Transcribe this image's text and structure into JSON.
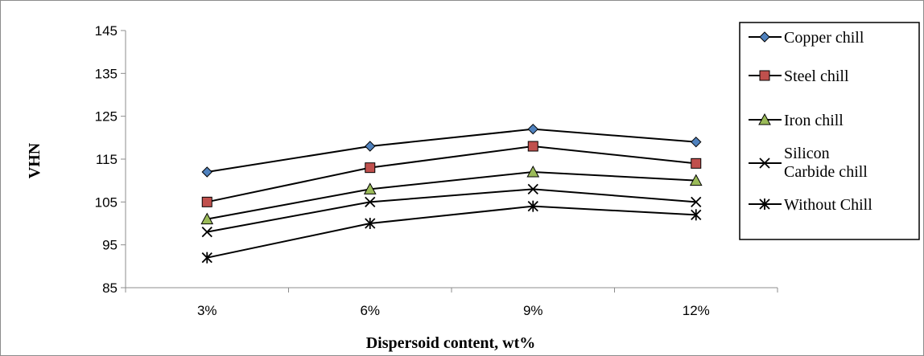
{
  "chart_data": {
    "type": "line",
    "title": "",
    "xlabel": "Dispersoid content, wt%",
    "ylabel": "VHN",
    "categories": [
      "3%",
      "6%",
      "9%",
      "12%"
    ],
    "ylim": [
      85,
      145
    ],
    "yticks": [
      85,
      95,
      105,
      115,
      125,
      135,
      145
    ],
    "grid": false,
    "legend_position": "right",
    "series": [
      {
        "name": "Copper chill",
        "values": [
          112,
          118,
          122,
          119
        ],
        "marker": "diamond",
        "color": "#4f81bd"
      },
      {
        "name": "Steel chill",
        "values": [
          105,
          113,
          118,
          114
        ],
        "marker": "square",
        "color": "#c0504d"
      },
      {
        "name": "Iron chill",
        "values": [
          101,
          108,
          112,
          110
        ],
        "marker": "triangle",
        "color": "#9bbb59"
      },
      {
        "name": "Silicon Carbide chill",
        "values": [
          98,
          105,
          108,
          105
        ],
        "marker": "x",
        "color": "#000000"
      },
      {
        "name": "Without Chill",
        "values": [
          92,
          100,
          104,
          102
        ],
        "marker": "star",
        "color": "#000000"
      }
    ]
  }
}
